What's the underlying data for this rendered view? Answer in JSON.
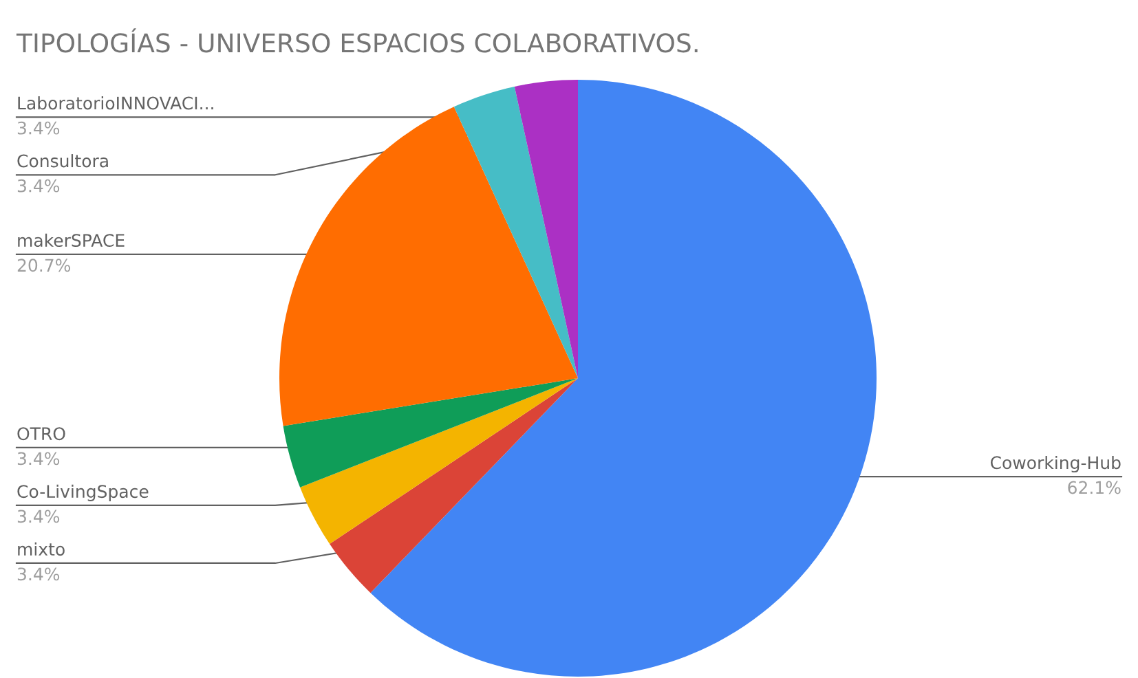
{
  "chart_data": {
    "type": "pie",
    "title": "TIPOLOGÍAS - UNIVERSO ESPACIOS COLABORATIVOS.",
    "categories": [
      "Coworking-Hub",
      "mixto",
      "Co-LivingSpace",
      "OTRO",
      "makerSPACE",
      "Consultora",
      "LaboratorioINNOVACI..."
    ],
    "values": [
      62.1,
      3.4,
      3.4,
      3.4,
      20.7,
      3.4,
      3.4
    ],
    "colors": [
      "#4285f4",
      "#db4437",
      "#f4b400",
      "#0f9d58",
      "#ff6d01",
      "#46bdc6",
      "#ab30c4"
    ],
    "value_labels": [
      "62.1%",
      "3.4%",
      "3.4%",
      "3.4%",
      "20.7%",
      "3.4%",
      "3.4%"
    ]
  }
}
